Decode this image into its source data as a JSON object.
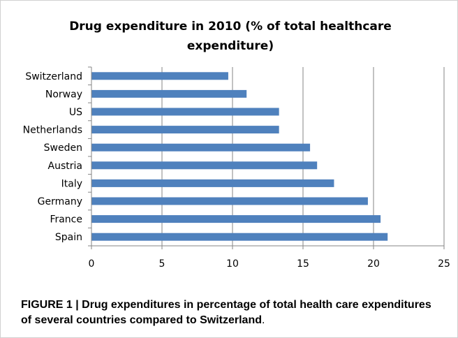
{
  "chart_data": {
    "type": "bar",
    "orientation": "horizontal",
    "title": "Drug expenditure in 2010 (% of total healthcare expenditure)",
    "categories": [
      "Switzerland",
      "Norway",
      "US",
      "Netherlands",
      "Sweden",
      "Austria",
      "Italy",
      "Germany",
      "France",
      "Spain"
    ],
    "values": [
      9.7,
      11.0,
      13.3,
      13.3,
      15.5,
      16.0,
      17.2,
      19.6,
      20.5,
      21.0
    ],
    "xlim": [
      0,
      25
    ],
    "xticks": [
      0,
      5,
      10,
      15,
      20,
      25
    ],
    "xlabel": "",
    "ylabel": "",
    "grid": "vertical",
    "bar_color": "#4f81bd"
  },
  "caption": {
    "text": "FIGURE 1 | Drug expenditures in percentage of total health care expenditures of several countries compared to Switzerland",
    "suffix": "."
  }
}
